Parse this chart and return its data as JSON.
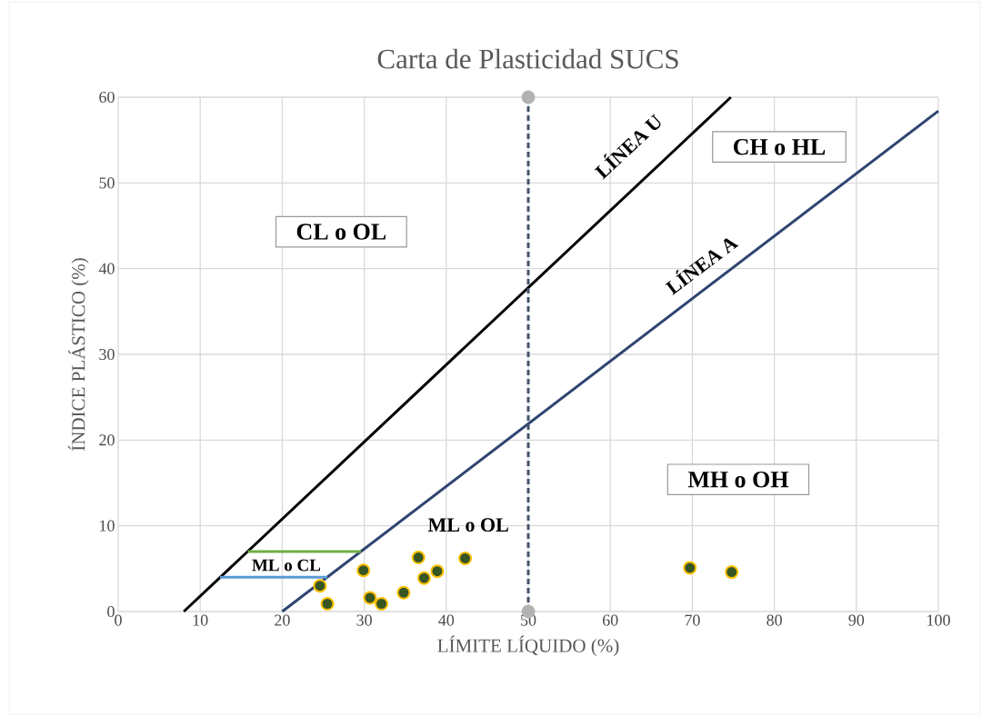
{
  "chart_data": {
    "type": "scatter",
    "title": "Carta de Plasticidad  SUCS",
    "xlabel": "LÍMITE  LÍQUIDO (%)",
    "ylabel": "ÍNDICE PLÁSTICO (%)",
    "xlim": [
      0,
      100
    ],
    "ylim": [
      0,
      60
    ],
    "xticks": [
      0,
      10,
      20,
      30,
      40,
      50,
      60,
      70,
      80,
      90,
      100
    ],
    "yticks": [
      0,
      10,
      20,
      30,
      40,
      50,
      60
    ],
    "grid": true,
    "marker": "circle",
    "series": [
      {
        "type": "line",
        "color": "#000000",
        "marker": "none",
        "x": [
          8,
          74.7
        ],
        "values": [
          0,
          60
        ]
      },
      {
        "type": "line",
        "color": "#2f4470",
        "marker": "none",
        "x": [
          20,
          100
        ],
        "values": [
          0,
          58.4
        ]
      },
      {
        "type": "line",
        "color": "#44546a",
        "line_style": "dashed",
        "x": [
          50,
          50
        ],
        "values": [
          0,
          60
        ]
      },
      {
        "type": "line",
        "color": "#70ad47",
        "marker": "none",
        "x": [
          15.8,
          29.6
        ],
        "values": [
          7,
          7
        ]
      },
      {
        "type": "line",
        "color": "#5b9bd5",
        "marker": "none",
        "x": [
          12.4,
          25.5
        ],
        "values": [
          4,
          4
        ]
      },
      {
        "color": "#375623",
        "x": [
          24.6,
          25.5,
          29.9,
          30.7,
          32.1,
          34.8,
          36.6,
          37.3,
          38.9,
          42.3,
          69.7,
          74.8
        ],
        "values": [
          3.0,
          0.9,
          4.8,
          1.6,
          0.9,
          2.2,
          6.3,
          3.9,
          4.7,
          6.2,
          5.1,
          4.6
        ]
      }
    ],
    "annotations": [
      "CL o OL",
      "CH o HL",
      "MH o OH",
      "LÍNEA U",
      "LÍNEA A",
      "ML o OL",
      "ML o CL"
    ]
  }
}
